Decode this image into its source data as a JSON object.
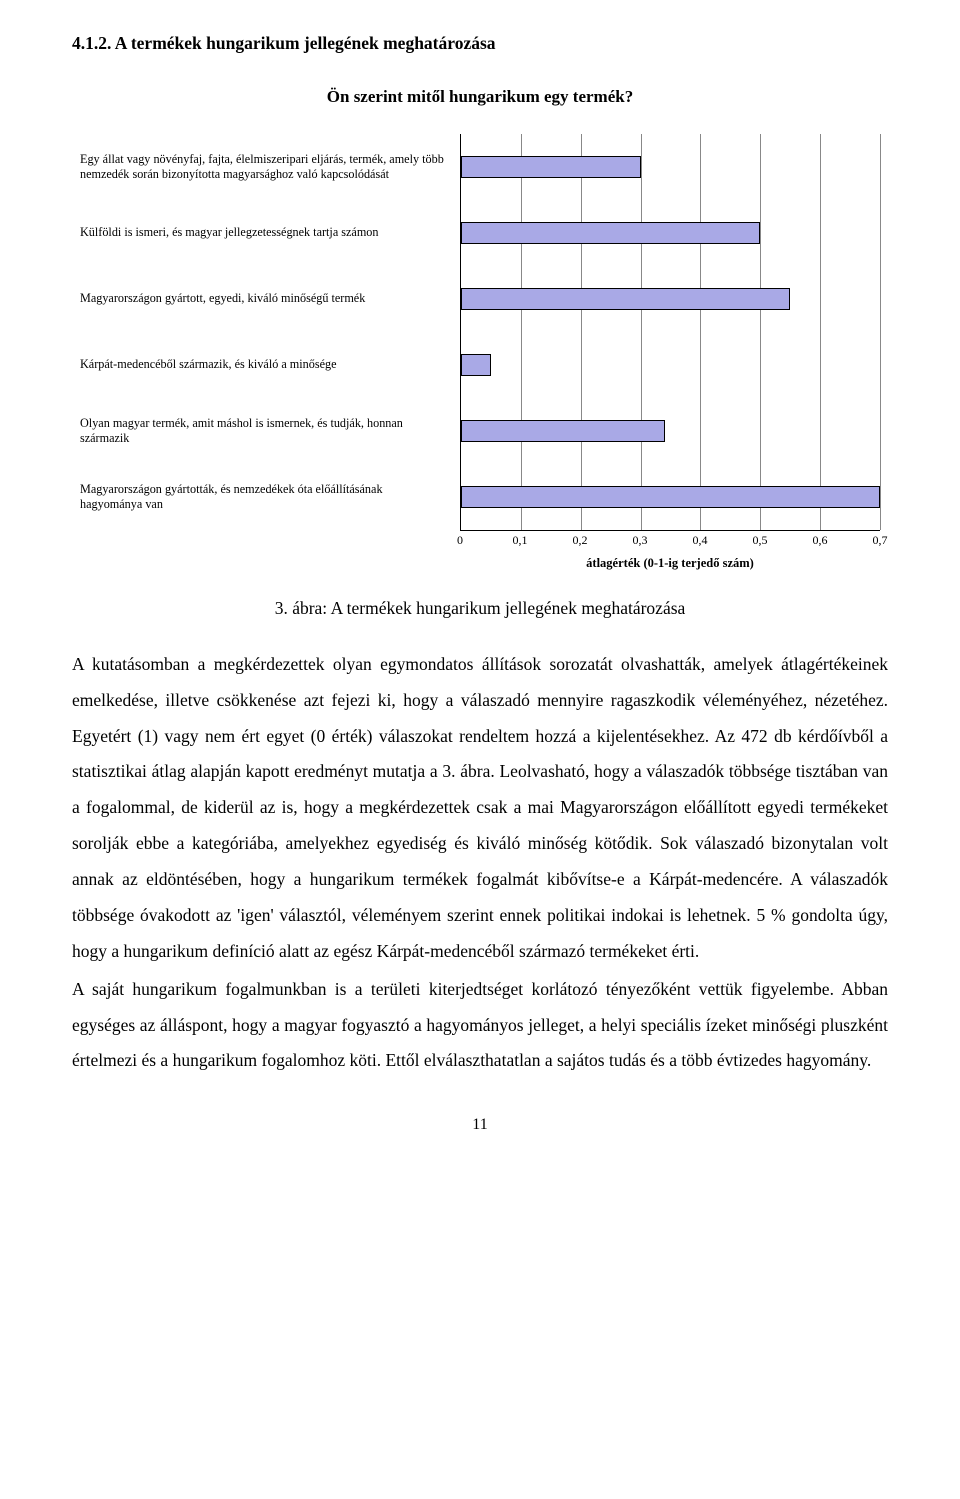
{
  "section_heading": "4.1.2. A termékek hungarikum jellegének meghatározása",
  "chart": {
    "type": "bar",
    "title": "Ön szerint mitől hungarikum egy termék?",
    "xlim": [
      0,
      0.7
    ],
    "xtick_step": 0.1,
    "xticks": [
      "0",
      "0,1",
      "0,2",
      "0,3",
      "0,4",
      "0,5",
      "0,6",
      "0,7"
    ],
    "bar_color": "#a9a9e6",
    "bar_border": "#000000",
    "grid_color": "#888888",
    "background_color": "#ffffff",
    "axis_label": "átlagérték (0-1-ig terjedő szám)",
    "categories": [
      {
        "label": "Egy állat vagy növényfaj, fajta, élelmiszeripari eljárás, termék, amely több nemzedék során bizonyította magyarsághoz való kapcsolódását",
        "value": 0.3
      },
      {
        "label": "Külföldi is ismeri, és magyar jellegzetességnek tartja számon",
        "value": 0.5
      },
      {
        "label": "Magyarországon gyártott, egyedi, kiváló minőségű termék",
        "value": 0.55
      },
      {
        "label": "Kárpát-medencéből származik, és kiváló a minősége",
        "value": 0.05
      },
      {
        "label": "Olyan magyar termék, amit máshol is ismernek, és tudják, honnan származik",
        "value": 0.34
      },
      {
        "label": "Magyarországon gyártották, és nemzedékek óta előállításának hagyománya van",
        "value": 0.7
      }
    ]
  },
  "figure_caption": "3. ábra: A termékek hungarikum jellegének meghatározása",
  "paragraphs": [
    "A kutatásomban a megkérdezettek olyan egymondatos állítások sorozatát olvashatták, amelyek átlagértékeinek emelkedése, illetve csökkenése azt fejezi ki, hogy a válaszadó mennyire ragaszkodik véleményéhez, nézetéhez. Egyetért (1) vagy nem ért egyet (0 érték) válaszokat rendeltem hozzá a kijelentésekhez. Az 472 db kérdőívből a statisztikai átlag alapján kapott eredményt mutatja a 3. ábra. Leolvasható, hogy a válaszadók többsége tisztában van a fogalommal, de kiderül az is, hogy a megkérdezettek csak a mai Magyarországon előállított egyedi termékeket sorolják ebbe a kategóriába, amelyekhez egyediség és kiváló minőség kötődik. Sok válaszadó bizonytalan volt annak az eldöntésében, hogy a hungarikum termékek fogalmát kibővítse-e a Kárpát-medencére. A válaszadók többsége óvakodott az 'igen' választól, véleményem szerint ennek politikai indokai is lehetnek. 5 % gondolta úgy, hogy a hungarikum definíció alatt az egész Kárpát-medencéből származó termékeket érti.",
    "A saját hungarikum fogalmunkban is a területi kiterjedtséget korlátozó tényezőként vettük figyelembe. Abban egységes az álláspont, hogy a magyar fogyasztó a hagyományos jelleget, a helyi speciális ízeket minőségi pluszként értelmezi és a hungarikum fogalomhoz köti. Ettől elválaszthatatlan a sajátos tudás és a több évtizedes hagyomány."
  ],
  "page_number": "11"
}
